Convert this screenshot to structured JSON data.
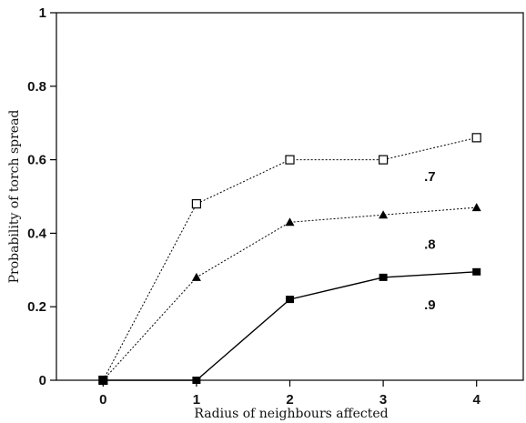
{
  "chart_data": {
    "type": "line",
    "title": "",
    "xlabel": "Radius of neighbours affected",
    "ylabel": "Probability of torch spread",
    "xlim": [
      -0.5,
      4.5
    ],
    "ylim": [
      0,
      1
    ],
    "xticks": [
      "0",
      "1",
      "2",
      "3",
      "4"
    ],
    "yticks": [
      "0",
      "0.2",
      "0.4",
      "0.6",
      "0.8",
      "1"
    ],
    "grid": false,
    "legend": "none",
    "series": [
      {
        "name": ".7",
        "x": [
          0,
          1,
          2,
          3,
          4
        ],
        "values": [
          0,
          0.48,
          0.6,
          0.6,
          0.66
        ],
        "marker": "open-square",
        "line": "dotted",
        "color": "#000000"
      },
      {
        "name": ".8",
        "x": [
          0,
          1,
          2,
          3,
          4
        ],
        "values": [
          0,
          0.28,
          0.43,
          0.45,
          0.47
        ],
        "marker": "filled-triangle",
        "line": "dotted",
        "color": "#000000"
      },
      {
        "name": ".9",
        "x": [
          0,
          1,
          2,
          3,
          4
        ],
        "values": [
          0,
          0,
          0.22,
          0.28,
          0.295
        ],
        "marker": "filled-square",
        "line": "solid",
        "color": "#000000"
      }
    ]
  }
}
